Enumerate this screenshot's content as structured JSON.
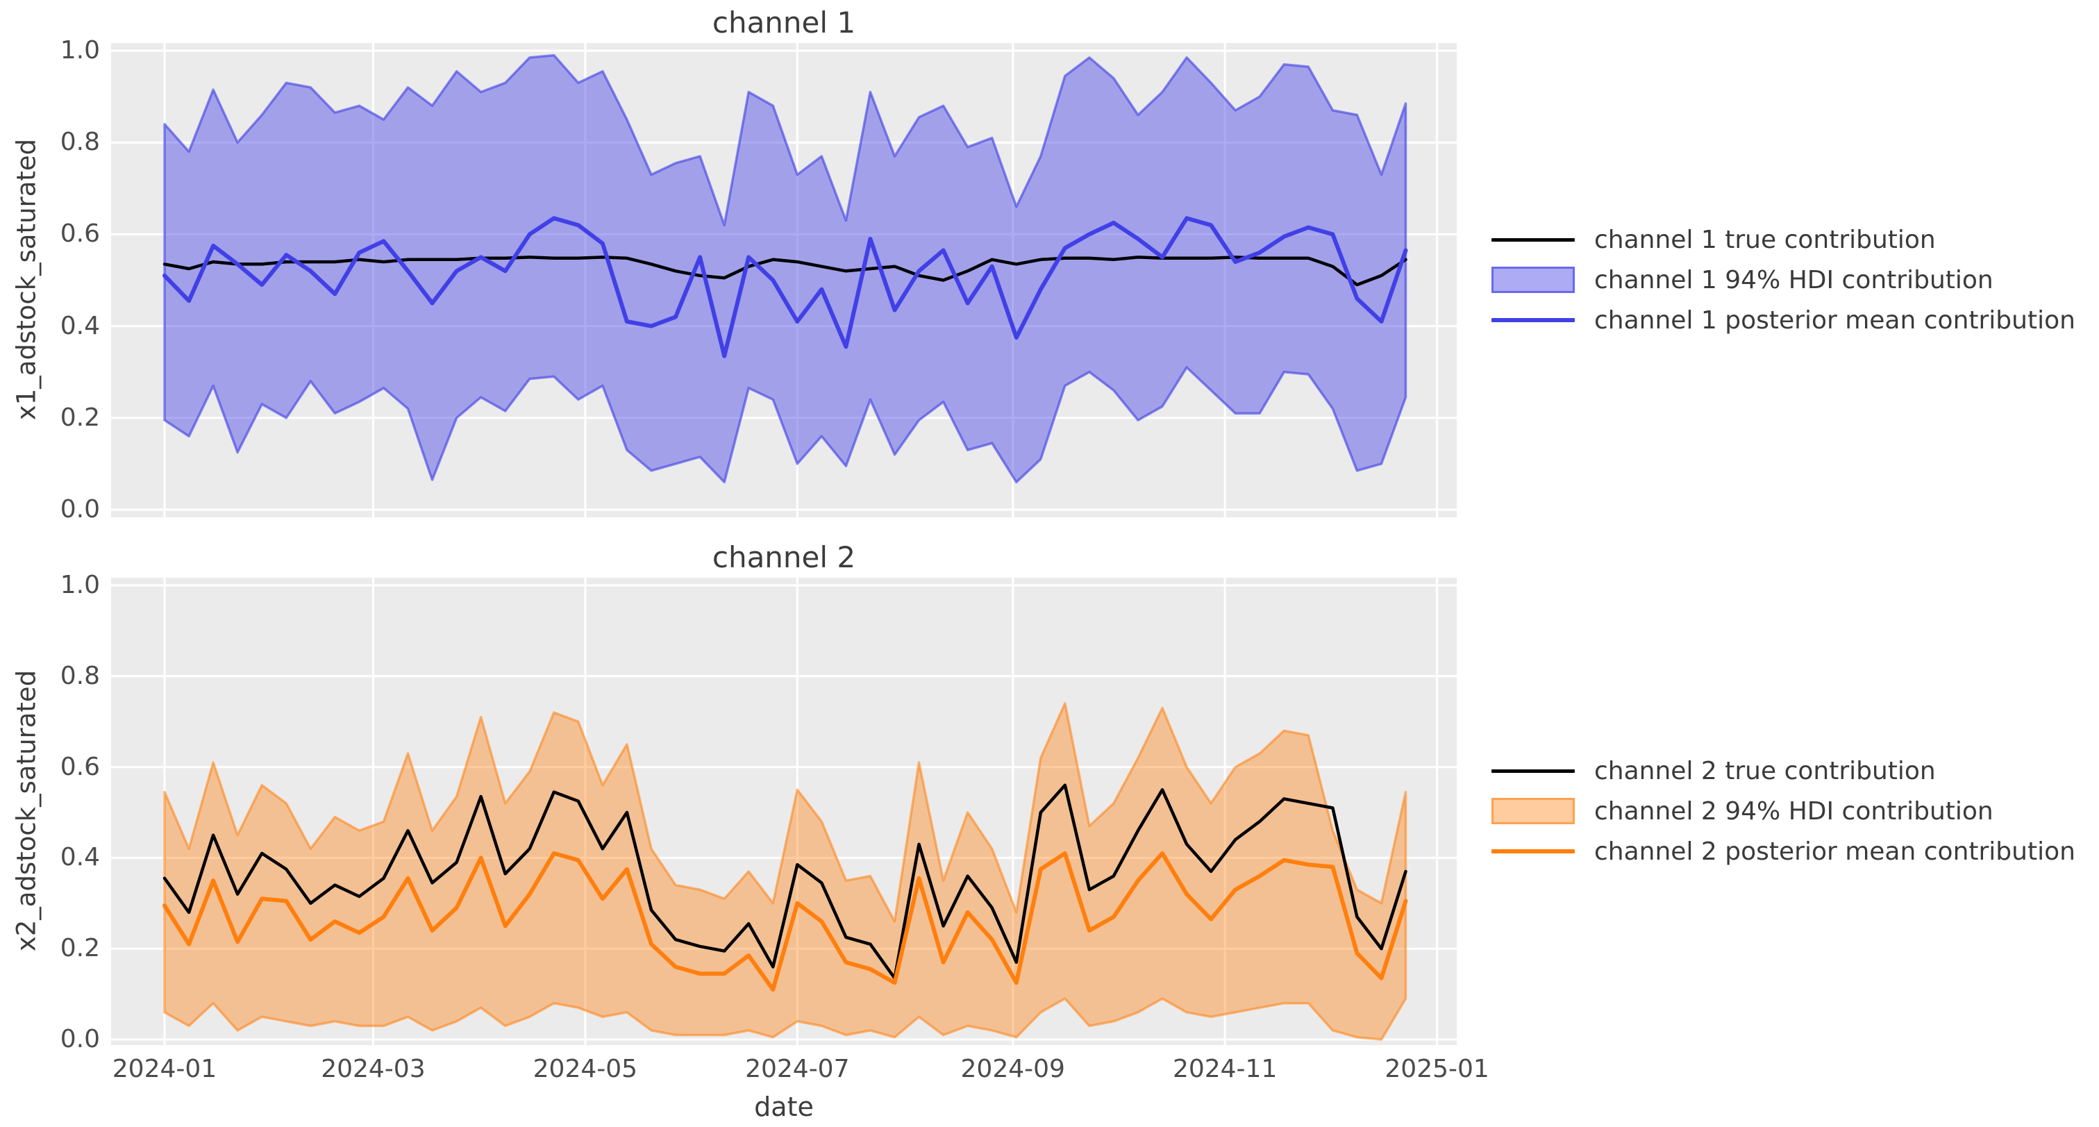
{
  "figure": {
    "xlabel": "date",
    "background_color": "#ffffff",
    "axes_background_color": "#ebebeb",
    "grid_color": "#ffffff",
    "text_color": "#3c3c3c"
  },
  "chart_data": [
    {
      "type": "line",
      "title": "channel 1",
      "ylabel": "x1_adstock_saturated",
      "ylim": [
        0.0,
        1.0
      ],
      "ytick_labels": [
        "0.0",
        "0.2",
        "0.4",
        "0.6",
        "0.8",
        "1.0"
      ],
      "ytick_values": [
        0.0,
        0.2,
        0.4,
        0.6,
        0.8,
        1.0
      ],
      "x_unit": "week index starting 2024-01",
      "xtick_labels": [
        "2024-01",
        "2024-03",
        "2024-05",
        "2024-07",
        "2024-09",
        "2024-11",
        "2025-01"
      ],
      "xtick_positions_weeks": [
        0,
        8.571,
        17.286,
        26.0,
        34.857,
        43.571,
        52.286
      ],
      "grid": true,
      "legend_position": "center right outside axes",
      "series": [
        {
          "name": "channel 1 true contribution",
          "kind": "line",
          "color": "#000000",
          "values": [
            0.535,
            0.525,
            0.54,
            0.535,
            0.535,
            0.54,
            0.54,
            0.54,
            0.545,
            0.54,
            0.545,
            0.545,
            0.545,
            0.548,
            0.548,
            0.55,
            0.548,
            0.548,
            0.55,
            0.548,
            0.535,
            0.52,
            0.51,
            0.505,
            0.53,
            0.545,
            0.54,
            0.53,
            0.52,
            0.525,
            0.53,
            0.51,
            0.5,
            0.52,
            0.545,
            0.535,
            0.545,
            0.548,
            0.548,
            0.545,
            0.55,
            0.548,
            0.548,
            0.548,
            0.55,
            0.548,
            0.548,
            0.548,
            0.53,
            0.49,
            0.51,
            0.545
          ]
        },
        {
          "name": "channel 1 94% HDI contribution",
          "kind": "band",
          "color": "#4140e6",
          "fill_alpha": 0.44,
          "edge_alpha": 0.62,
          "lower": [
            0.195,
            0.16,
            0.27,
            0.125,
            0.23,
            0.2,
            0.28,
            0.21,
            0.235,
            0.265,
            0.22,
            0.065,
            0.2,
            0.245,
            0.215,
            0.285,
            0.29,
            0.24,
            0.27,
            0.13,
            0.085,
            0.1,
            0.115,
            0.06,
            0.265,
            0.24,
            0.1,
            0.16,
            0.095,
            0.24,
            0.12,
            0.195,
            0.235,
            0.13,
            0.145,
            0.06,
            0.11,
            0.27,
            0.3,
            0.26,
            0.195,
            0.225,
            0.31,
            0.26,
            0.21,
            0.21,
            0.3,
            0.295,
            0.22,
            0.085,
            0.1,
            0.245
          ],
          "upper": [
            0.84,
            0.78,
            0.915,
            0.8,
            0.86,
            0.93,
            0.92,
            0.865,
            0.88,
            0.85,
            0.92,
            0.88,
            0.955,
            0.91,
            0.93,
            0.985,
            0.99,
            0.93,
            0.955,
            0.85,
            0.73,
            0.755,
            0.77,
            0.62,
            0.91,
            0.88,
            0.73,
            0.77,
            0.63,
            0.91,
            0.77,
            0.855,
            0.88,
            0.79,
            0.81,
            0.66,
            0.77,
            0.945,
            0.985,
            0.94,
            0.86,
            0.91,
            0.985,
            0.93,
            0.87,
            0.9,
            0.97,
            0.965,
            0.87,
            0.86,
            0.73,
            0.885
          ]
        },
        {
          "name": "channel 1 posterior mean contribution",
          "kind": "line",
          "color": "#4140e6",
          "values": [
            0.51,
            0.455,
            0.575,
            0.535,
            0.49,
            0.555,
            0.52,
            0.47,
            0.56,
            0.585,
            0.52,
            0.45,
            0.52,
            0.55,
            0.52,
            0.6,
            0.635,
            0.62,
            0.58,
            0.41,
            0.4,
            0.42,
            0.55,
            0.335,
            0.55,
            0.5,
            0.41,
            0.48,
            0.355,
            0.59,
            0.435,
            0.52,
            0.565,
            0.45,
            0.53,
            0.375,
            0.48,
            0.57,
            0.6,
            0.625,
            0.59,
            0.55,
            0.635,
            0.62,
            0.54,
            0.56,
            0.595,
            0.615,
            0.6,
            0.46,
            0.41,
            0.565
          ]
        }
      ]
    },
    {
      "type": "line",
      "title": "channel 2",
      "ylabel": "x2_adstock_saturated",
      "xlabel": "date",
      "ylim": [
        0.0,
        1.0
      ],
      "ytick_labels": [
        "0.0",
        "0.2",
        "0.4",
        "0.6",
        "0.8",
        "1.0"
      ],
      "ytick_values": [
        0.0,
        0.2,
        0.4,
        0.6,
        0.8,
        1.0
      ],
      "x_unit": "week index starting 2024-01",
      "xtick_labels": [
        "2024-01",
        "2024-03",
        "2024-05",
        "2024-07",
        "2024-09",
        "2024-11",
        "2025-01"
      ],
      "xtick_positions_weeks": [
        0,
        8.571,
        17.286,
        26.0,
        34.857,
        43.571,
        52.286
      ],
      "grid": true,
      "legend_position": "center right outside axes",
      "series": [
        {
          "name": "channel 2 true contribution",
          "kind": "line",
          "color": "#000000",
          "values": [
            0.355,
            0.28,
            0.45,
            0.32,
            0.41,
            0.375,
            0.3,
            0.34,
            0.315,
            0.355,
            0.46,
            0.345,
            0.39,
            0.535,
            0.365,
            0.42,
            0.545,
            0.525,
            0.42,
            0.5,
            0.285,
            0.22,
            0.205,
            0.195,
            0.255,
            0.16,
            0.385,
            0.345,
            0.225,
            0.21,
            0.135,
            0.43,
            0.25,
            0.36,
            0.29,
            0.17,
            0.5,
            0.56,
            0.33,
            0.36,
            0.46,
            0.55,
            0.43,
            0.37,
            0.44,
            0.48,
            0.53,
            0.52,
            0.51,
            0.27,
            0.2,
            0.37
          ]
        },
        {
          "name": "channel 2 94% HDI contribution",
          "kind": "band",
          "color": "#ff7f0e",
          "fill_alpha": 0.4,
          "edge_alpha": 0.55,
          "lower": [
            0.06,
            0.03,
            0.08,
            0.02,
            0.05,
            0.04,
            0.03,
            0.04,
            0.03,
            0.03,
            0.05,
            0.02,
            0.04,
            0.07,
            0.03,
            0.05,
            0.08,
            0.07,
            0.05,
            0.06,
            0.02,
            0.01,
            0.01,
            0.01,
            0.02,
            0.005,
            0.04,
            0.03,
            0.01,
            0.02,
            0.005,
            0.05,
            0.01,
            0.03,
            0.02,
            0.005,
            0.06,
            0.09,
            0.03,
            0.04,
            0.06,
            0.09,
            0.06,
            0.05,
            0.06,
            0.07,
            0.08,
            0.08,
            0.02,
            0.005,
            0.0,
            0.09
          ],
          "upper": [
            0.545,
            0.42,
            0.61,
            0.45,
            0.56,
            0.52,
            0.42,
            0.49,
            0.46,
            0.48,
            0.63,
            0.46,
            0.535,
            0.71,
            0.52,
            0.59,
            0.72,
            0.7,
            0.56,
            0.65,
            0.42,
            0.34,
            0.33,
            0.31,
            0.37,
            0.3,
            0.55,
            0.48,
            0.35,
            0.36,
            0.26,
            0.61,
            0.35,
            0.5,
            0.42,
            0.28,
            0.62,
            0.74,
            0.47,
            0.52,
            0.62,
            0.73,
            0.6,
            0.52,
            0.6,
            0.63,
            0.68,
            0.67,
            0.46,
            0.33,
            0.3,
            0.545
          ]
        },
        {
          "name": "channel 2 posterior mean contribution",
          "kind": "line",
          "color": "#ff7f0e",
          "values": [
            0.295,
            0.21,
            0.35,
            0.215,
            0.31,
            0.305,
            0.22,
            0.26,
            0.235,
            0.27,
            0.355,
            0.24,
            0.29,
            0.4,
            0.25,
            0.32,
            0.41,
            0.395,
            0.31,
            0.375,
            0.21,
            0.16,
            0.145,
            0.145,
            0.185,
            0.11,
            0.3,
            0.26,
            0.17,
            0.155,
            0.125,
            0.355,
            0.17,
            0.28,
            0.22,
            0.125,
            0.375,
            0.41,
            0.24,
            0.27,
            0.35,
            0.41,
            0.32,
            0.265,
            0.33,
            0.36,
            0.395,
            0.385,
            0.38,
            0.19,
            0.135,
            0.305
          ]
        }
      ]
    }
  ]
}
